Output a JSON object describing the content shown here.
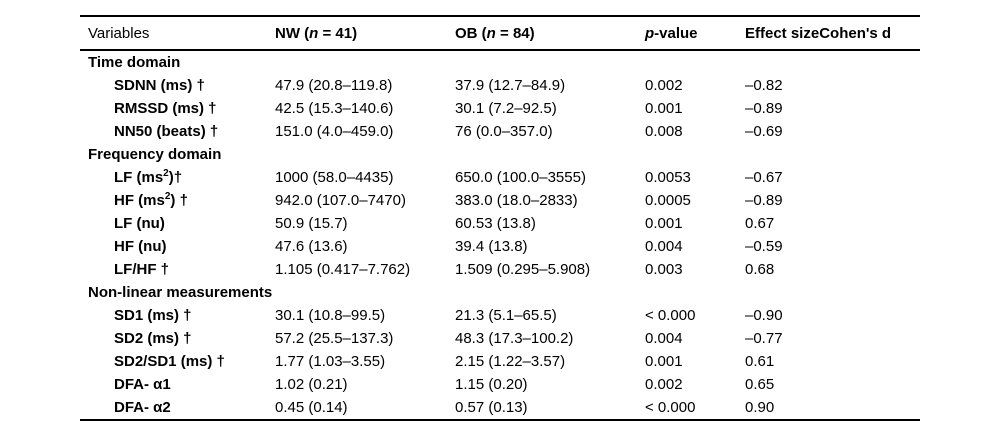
{
  "page": {
    "background_color": "#ffffff",
    "text_color": "#000000",
    "rule_color": "#000000"
  },
  "table": {
    "columns": [
      "Variables",
      "NW (*n* = 41)",
      "OB (*n* = 84)",
      "*p*-value",
      "Effect sizeCohen's d"
    ],
    "sections": [
      {
        "label": "Time domain",
        "rows": [
          {
            "variable": "SDNN (ms) †",
            "nw": "47.9 (20.8–119.8)",
            "ob": "37.9 (12.7–84.9)",
            "p_value": "0.002",
            "effect_size": "–0.82"
          },
          {
            "variable": "RMSSD (ms) †",
            "nw": "42.5 (15.3–140.6)",
            "ob": "30.1 (7.2–92.5)",
            "p_value": "0.001",
            "effect_size": "–0.89"
          },
          {
            "variable": "NN50 (beats) †",
            "nw": "151.0 (4.0–459.0)",
            "ob": "76 (0.0–357.0)",
            "p_value": "0.008",
            "effect_size": "–0.69"
          }
        ]
      },
      {
        "label": "Frequency domain",
        "rows": [
          {
            "variable": "LF (ms^2^)†",
            "nw": "1000 (58.0–4435)",
            "ob": "650.0 (100.0–3555)",
            "p_value": "0.0053",
            "effect_size": "–0.67"
          },
          {
            "variable": "HF (ms^2^) †",
            "nw": "942.0 (107.0–7470)",
            "ob": "383.0 (18.0–2833)",
            "p_value": "0.0005",
            "effect_size": "–0.89"
          },
          {
            "variable": "LF (nu)",
            "nw": "50.9 (15.7)",
            "ob": "60.53 (13.8)",
            "p_value": "0.001",
            "effect_size": "0.67"
          },
          {
            "variable": "HF (nu)",
            "nw": "47.6 (13.6)",
            "ob": "39.4 (13.8)",
            "p_value": "0.004",
            "effect_size": "–0.59"
          },
          {
            "variable": "LF/HF †",
            "nw": "1.105 (0.417–7.762)",
            "ob": "1.509 (0.295–5.908)",
            "p_value": "0.003",
            "effect_size": "0.68"
          }
        ]
      },
      {
        "label": "Non-linear measurements",
        "rows": [
          {
            "variable": "SD1 (ms) †",
            "nw": "30.1 (10.8–99.5)",
            "ob": "21.3 (5.1–65.5)",
            "p_value": "< 0.000",
            "effect_size": "–0.90"
          },
          {
            "variable": "SD2 (ms) †",
            "nw": "57.2 (25.5–137.3)",
            "ob": "48.3 (17.3–100.2)",
            "p_value": "0.004",
            "effect_size": "–0.77"
          },
          {
            "variable": "SD2/SD1 (ms) †",
            "nw": "1.77 (1.03–3.55)",
            "ob": "2.15 (1.22–3.57)",
            "p_value": "0.001",
            "effect_size": "0.61"
          },
          {
            "variable": "DFA- α1",
            "nw": "1.02 (0.21)",
            "ob": "1.15 (0.20)",
            "p_value": "0.002",
            "effect_size": "0.65"
          },
          {
            "variable": "DFA- α2",
            "nw": "0.45 (0.14)",
            "ob": "0.57 (0.13)",
            "p_value": "< 0.000",
            "effect_size": "0.90"
          }
        ]
      }
    ]
  }
}
